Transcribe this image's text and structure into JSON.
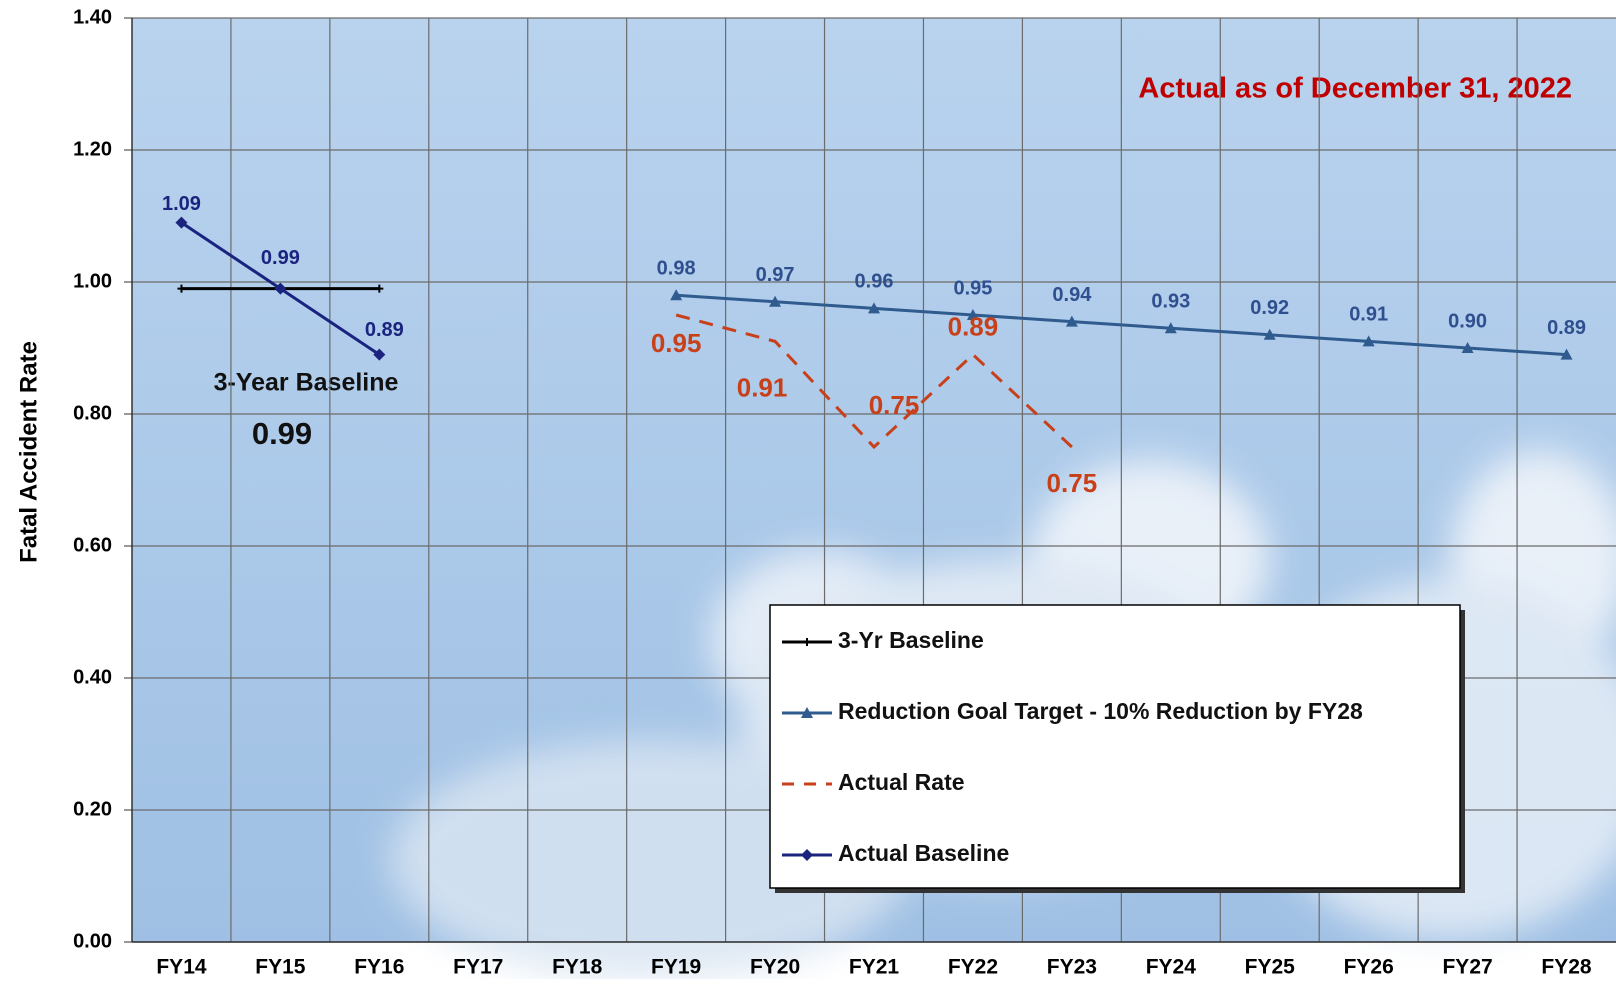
{
  "chart_data": {
    "type": "line",
    "annotations": [
      "Actual as of December 31, 2022",
      "3-Year Baseline",
      "0.99"
    ],
    "y_label": "Fatal Accident Rate",
    "categories": [
      "FY14",
      "FY15",
      "FY16",
      "FY17",
      "FY18",
      "FY19",
      "FY20",
      "FY21",
      "FY22",
      "FY23",
      "FY24",
      "FY25",
      "FY26",
      "FY27",
      "FY28"
    ],
    "ylim": [
      0,
      1.4
    ],
    "yticks": [
      {
        "value": 0,
        "label": "0.00"
      },
      {
        "value": 0.2,
        "label": "0.20"
      },
      {
        "value": 0.4,
        "label": "0.40"
      },
      {
        "value": 0.6,
        "label": "0.60"
      },
      {
        "value": 0.8,
        "label": "0.80"
      },
      {
        "value": 1,
        "label": "1.00"
      },
      {
        "value": 1.2,
        "label": "1.20"
      },
      {
        "value": 1.4,
        "label": "1.40"
      }
    ],
    "grid": true,
    "series": [
      {
        "name": "3-Yr Baseline",
        "color": "#000000",
        "marker": "plus",
        "dashed": false,
        "values": [
          0.99,
          0.99,
          0.99,
          null,
          null,
          null,
          null,
          null,
          null,
          null,
          null,
          null,
          null,
          null,
          null
        ]
      },
      {
        "name": "Reduction Goal Target - 10% Reduction by FY28",
        "color": "#2f5b8f",
        "marker": "triangle",
        "dashed": false,
        "values": [
          null,
          null,
          null,
          null,
          null,
          0.98,
          0.97,
          0.96,
          0.95,
          0.94,
          0.93,
          0.92,
          0.91,
          0.9,
          0.89
        ],
        "value_labels": [
          null,
          null,
          null,
          null,
          null,
          "0.98",
          "0.97",
          "0.96",
          "0.95",
          "0.94",
          "0.93",
          "0.92",
          "0.91",
          "0.90",
          "0.89"
        ]
      },
      {
        "name": "Actual Rate",
        "color": "#c8401a",
        "marker": "none",
        "dashed": true,
        "values": [
          null,
          null,
          null,
          null,
          null,
          0.95,
          0.91,
          0.75,
          0.89,
          0.75,
          null,
          null,
          null,
          null,
          null
        ],
        "value_labels": [
          null,
          null,
          null,
          null,
          null,
          "0.95",
          "0.91",
          "0.75",
          "0.89",
          "0.75",
          null,
          null,
          null,
          null,
          null
        ]
      },
      {
        "name": "Actual Baseline",
        "color": "#1a237e",
        "marker": "diamond",
        "dashed": false,
        "values": [
          1.09,
          0.99,
          0.89,
          null,
          null,
          null,
          null,
          null,
          null,
          null,
          null,
          null,
          null,
          null,
          null
        ],
        "value_labels": [
          "1.09",
          "0.99",
          "0.89",
          null,
          null,
          null,
          null,
          null,
          null,
          null,
          null,
          null,
          null,
          null,
          null
        ]
      }
    ]
  }
}
